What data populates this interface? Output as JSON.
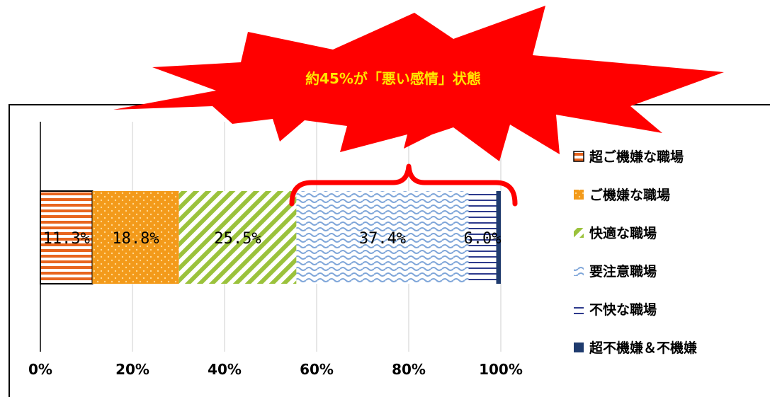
{
  "callout": {
    "text": "約45%が「悪い感情」状態"
  },
  "colors": {
    "super_good": "#e8651e",
    "good": "#f39a1a",
    "comfortable": "#9bc23c",
    "caution": "#7fa6d9",
    "unpleasant": "#2d3a8c",
    "bad": "#1f3b6e",
    "burst": "#ff0000",
    "brace": "#ff0000"
  },
  "chart_data": {
    "type": "bar",
    "orientation": "horizontal",
    "stacked": "percent",
    "x_ticks": [
      "0%",
      "20%",
      "40%",
      "60%",
      "80%",
      "100%"
    ],
    "xlim": [
      0,
      100
    ],
    "grid": true,
    "legend_position": "right",
    "series": [
      {
        "name": "超ご機嫌な職場",
        "value": 11.3,
        "label": "11.3%",
        "pattern": "hstripe",
        "color_key": "super_good"
      },
      {
        "name": "ご機嫌な職場",
        "value": 18.8,
        "label": "18.8%",
        "pattern": "dots",
        "color_key": "good"
      },
      {
        "name": "快適な職場",
        "value": 25.5,
        "label": "25.5%",
        "pattern": "diag",
        "color_key": "comfortable"
      },
      {
        "name": "要注意職場",
        "value": 37.4,
        "label": "37.4%",
        "pattern": "wave",
        "color_key": "caution"
      },
      {
        "name": "不快な職場",
        "value": 6.0,
        "label": "6.0%",
        "pattern": "hline",
        "color_key": "unpleasant"
      },
      {
        "name": "超不機嫌＆不機嫌",
        "value": 1.0,
        "label": "",
        "pattern": "solid",
        "color_key": "bad"
      }
    ]
  }
}
